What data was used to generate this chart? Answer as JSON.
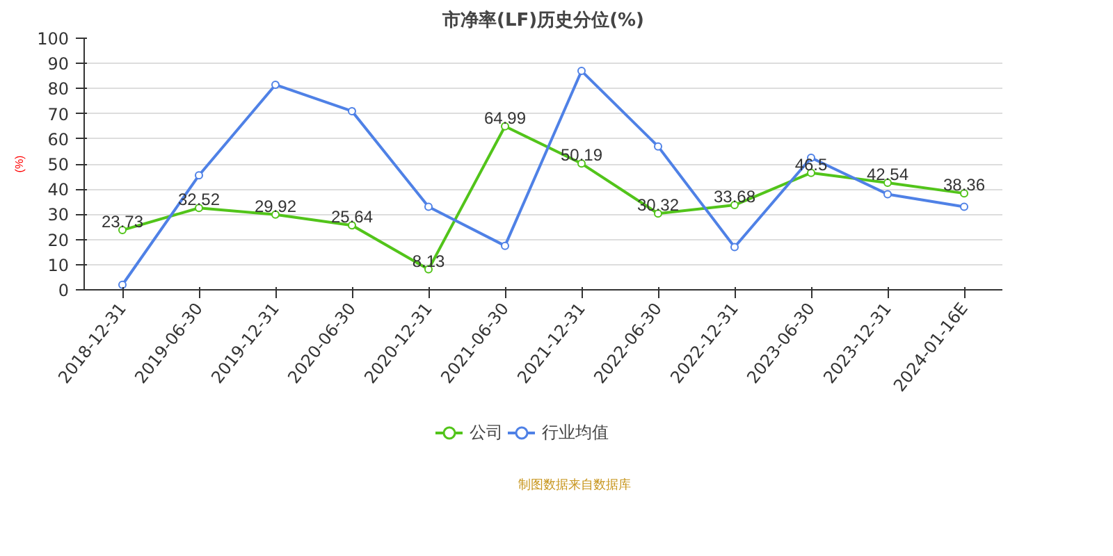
{
  "chart_data": {
    "type": "line",
    "title": "市净率(LF)历史分位(%)",
    "ylabel": "(%)",
    "categories": [
      "2018-12-31",
      "2019-06-30",
      "2019-12-31",
      "2020-06-30",
      "2020-12-31",
      "2021-06-30",
      "2021-12-31",
      "2022-06-30",
      "2022-12-31",
      "2023-06-30",
      "2023-12-31",
      "2024-01-16E"
    ],
    "series": [
      {
        "name": "公司",
        "color": "#52c41a",
        "values": [
          23.73,
          32.52,
          29.92,
          25.64,
          8.13,
          64.99,
          50.19,
          30.32,
          33.68,
          46.5,
          42.54,
          38.36
        ],
        "value_labels": [
          "23.73",
          "32.52",
          "29.92",
          "25.64",
          "8.13",
          "64.99",
          "50.19",
          "30.32",
          "33.68",
          "46.5",
          "42.54",
          "38.36"
        ]
      },
      {
        "name": "行业均值",
        "color": "#4f81e6",
        "values": [
          2,
          45.5,
          81.5,
          71,
          33,
          17.5,
          87,
          57,
          17,
          52.5,
          38,
          33
        ]
      }
    ],
    "ylim": [
      0,
      100
    ],
    "yticks": [
      0,
      10,
      20,
      30,
      40,
      50,
      60,
      70,
      80,
      90,
      100
    ],
    "grid": "y",
    "legend": "bottom",
    "marker": "circle",
    "annotations": [
      "制图数据来自数据库"
    ]
  }
}
